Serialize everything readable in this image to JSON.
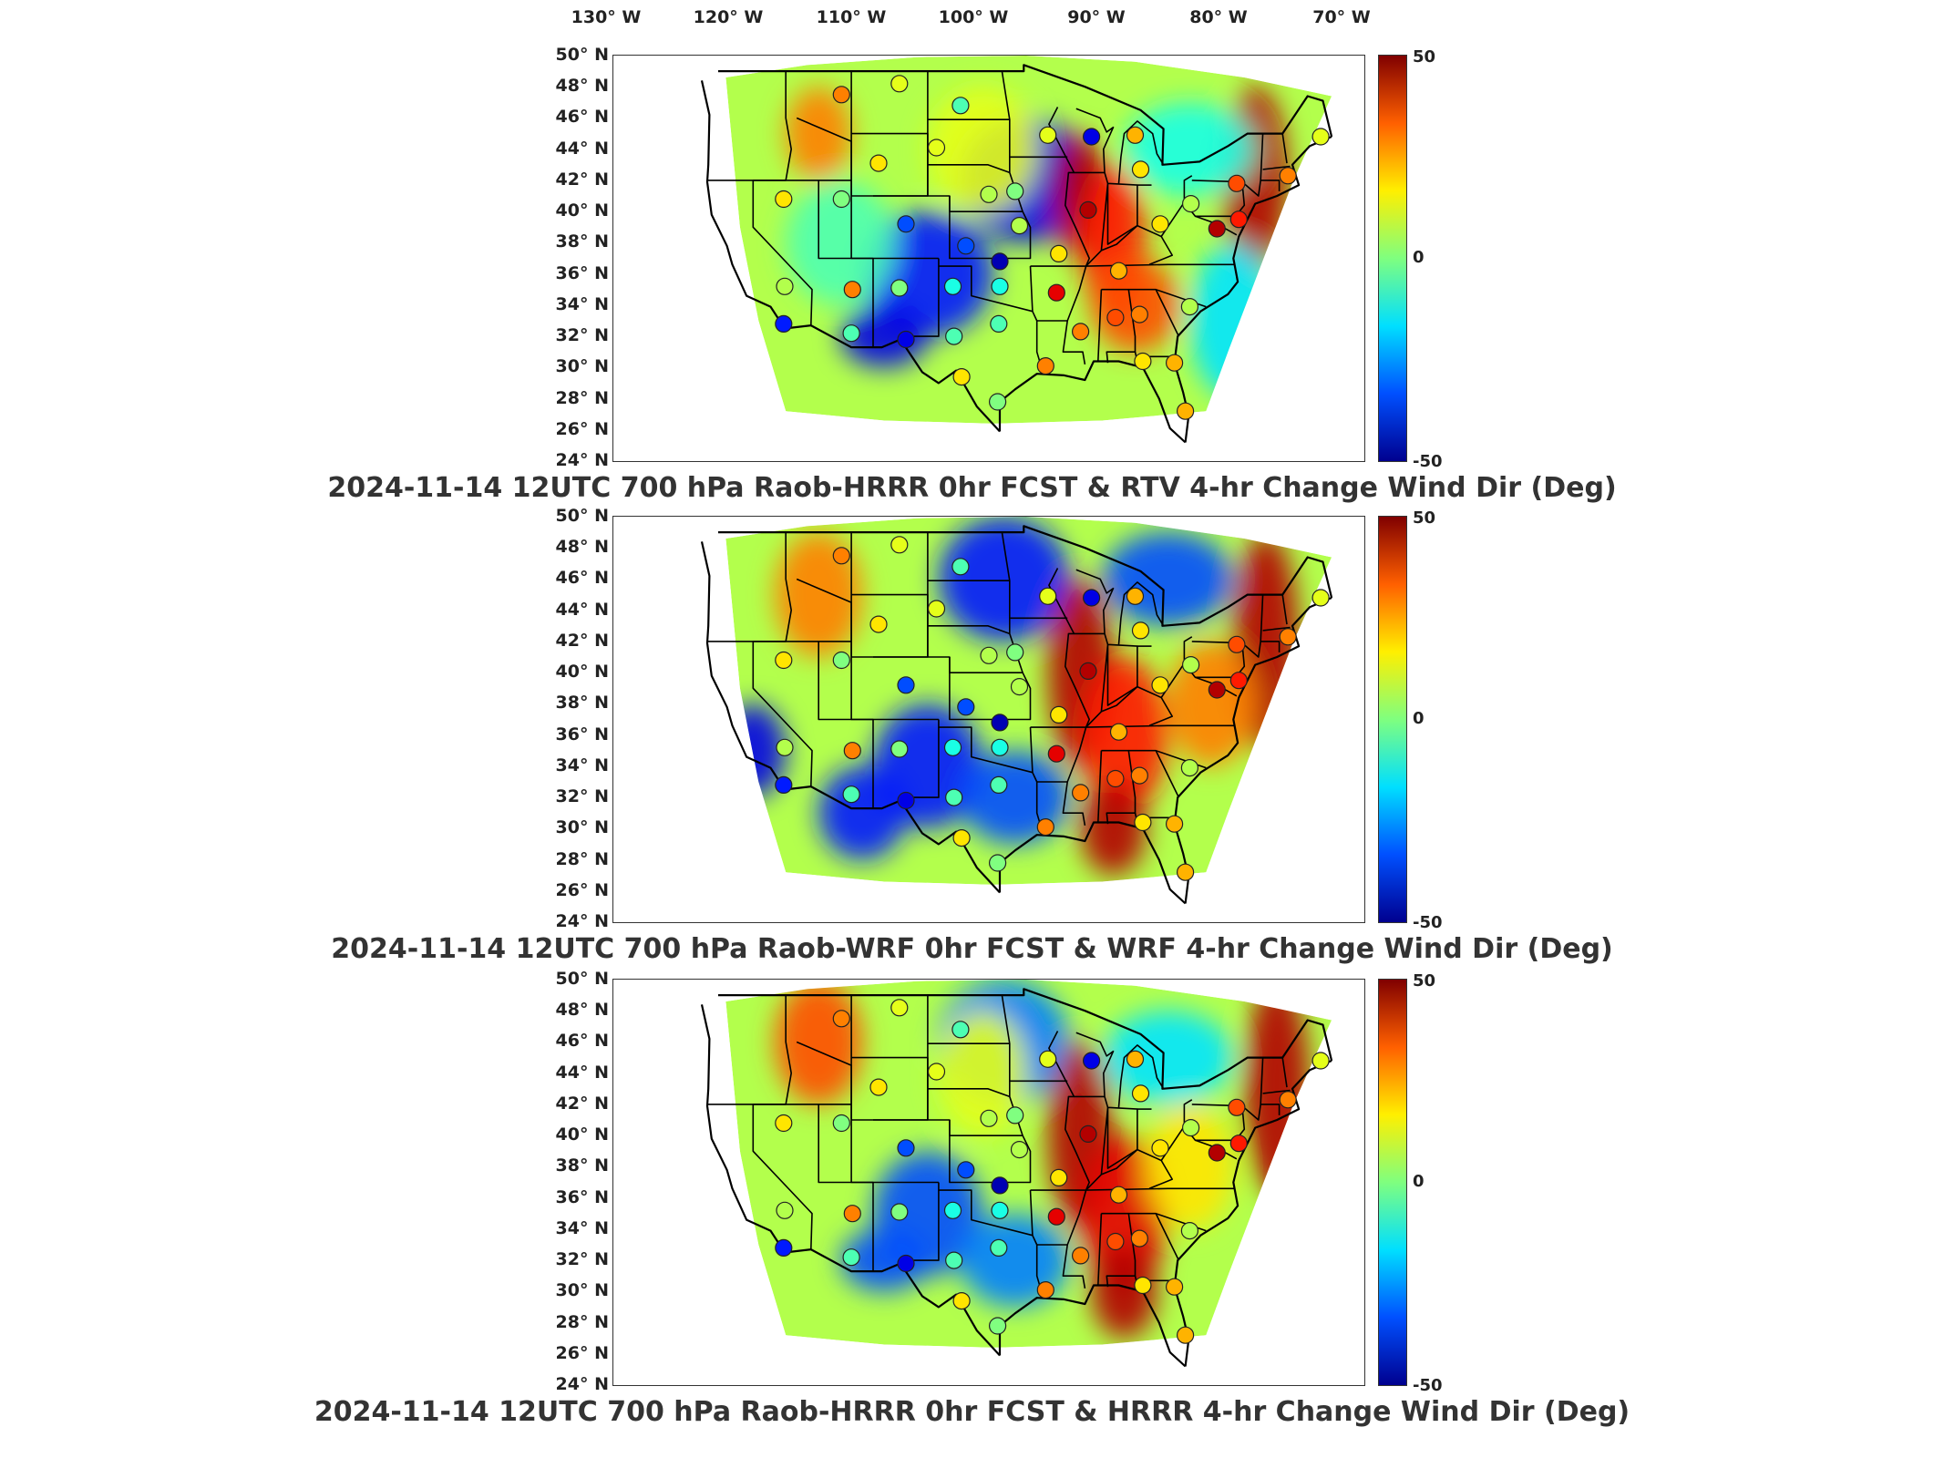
{
  "lon_labels": [
    "130° W",
    "120° W",
    "110° W",
    "100° W",
    "90° W",
    "80° W",
    "70° W"
  ],
  "lat_labels": [
    "50° N",
    "48° N",
    "46° N",
    "44° N",
    "42° N",
    "40° N",
    "38° N",
    "36° N",
    "34° N",
    "32° N",
    "30° N",
    "28° N",
    "26° N",
    "24° N"
  ],
  "colorbar": {
    "max_label": "50",
    "mid_label": "0",
    "min_label": "-50",
    "colors": [
      "#00008f",
      "#0050ff",
      "#00dfff",
      "#7fff7f",
      "#ffef00",
      "#ff6000",
      "#800000"
    ]
  },
  "panels": [
    {
      "title": "2024-11-14 12UTC 700 hPa Raob-HRRR 0hr FCST & RTV 4-hr Change Wind Dir (Deg)",
      "variant": "rtv"
    },
    {
      "title": "2024-11-14 12UTC 700 hPa Raob-WRF 0hr FCST & WRF 4-hr Change Wind Dir (Deg)",
      "variant": "wrf"
    },
    {
      "title": "2024-11-14 12UTC 700 hPa Raob-HRRR 0hr FCST & HRRR 4-hr Change Wind Dir (Deg)",
      "variant": "hrrr"
    }
  ],
  "chart_data": {
    "type": "heatmap",
    "colorbar_range": [
      -50,
      50
    ],
    "colorbar_ticks": [
      -50,
      0,
      50
    ],
    "lon_ticks": [
      -130,
      -120,
      -110,
      -100,
      -90,
      -80,
      -70
    ],
    "lat_ticks": [
      50,
      48,
      46,
      44,
      42,
      40,
      38,
      36,
      34,
      32,
      30,
      28,
      26,
      24
    ],
    "colormap": "jet",
    "raob_sites": [
      {
        "lon": -111.9,
        "lat": 47.5,
        "v": 25
      },
      {
        "lon": -106.6,
        "lat": 48.2,
        "v": 10
      },
      {
        "lon": -101.0,
        "lat": 46.8,
        "v": -5
      },
      {
        "lon": -108.5,
        "lat": 43.1,
        "v": 15
      },
      {
        "lon": -103.2,
        "lat": 44.1,
        "v": 10
      },
      {
        "lon": -98.4,
        "lat": 41.1,
        "v": 5
      },
      {
        "lon": -96.0,
        "lat": 41.3,
        "v": 0
      },
      {
        "lon": -93.0,
        "lat": 44.9,
        "v": 10
      },
      {
        "lon": -89.0,
        "lat": 44.8,
        "v": -40
      },
      {
        "lon": -85.0,
        "lat": 44.9,
        "v": 20
      },
      {
        "lon": -84.5,
        "lat": 42.7,
        "v": 15
      },
      {
        "lon": -117.2,
        "lat": 40.8,
        "v": 15
      },
      {
        "lon": -111.9,
        "lat": 40.8,
        "v": 0
      },
      {
        "lon": -106.0,
        "lat": 39.2,
        "v": -30
      },
      {
        "lon": -100.5,
        "lat": 37.8,
        "v": -30
      },
      {
        "lon": -95.6,
        "lat": 39.1,
        "v": 5
      },
      {
        "lon": -97.4,
        "lat": 36.8,
        "v": -45
      },
      {
        "lon": -92.0,
        "lat": 37.3,
        "v": 15
      },
      {
        "lon": -89.3,
        "lat": 40.1,
        "v": 45
      },
      {
        "lon": -86.5,
        "lat": 36.2,
        "v": 20
      },
      {
        "lon": -82.7,
        "lat": 39.2,
        "v": 15
      },
      {
        "lon": -79.9,
        "lat": 40.5,
        "v": 5
      },
      {
        "lon": -77.5,
        "lat": 38.9,
        "v": 45
      },
      {
        "lon": -75.5,
        "lat": 39.5,
        "v": 35
      },
      {
        "lon": -117.1,
        "lat": 35.2,
        "v": 5
      },
      {
        "lon": -110.9,
        "lat": 35.0,
        "v": 25
      },
      {
        "lon": -106.6,
        "lat": 35.1,
        "v": 0
      },
      {
        "lon": -101.7,
        "lat": 35.2,
        "v": -10
      },
      {
        "lon": -97.4,
        "lat": 35.2,
        "v": -10
      },
      {
        "lon": -92.2,
        "lat": 34.8,
        "v": 40
      },
      {
        "lon": -90.0,
        "lat": 32.3,
        "v": 25
      },
      {
        "lon": -86.8,
        "lat": 33.2,
        "v": 30
      },
      {
        "lon": -84.6,
        "lat": 33.4,
        "v": 25
      },
      {
        "lon": -80.0,
        "lat": 33.9,
        "v": 5
      },
      {
        "lon": -117.2,
        "lat": 32.8,
        "v": -35
      },
      {
        "lon": -111.0,
        "lat": 32.2,
        "v": -5
      },
      {
        "lon": -106.0,
        "lat": 31.8,
        "v": -40
      },
      {
        "lon": -101.6,
        "lat": 32.0,
        "v": -5
      },
      {
        "lon": -97.5,
        "lat": 32.8,
        "v": -5
      },
      {
        "lon": -93.2,
        "lat": 30.1,
        "v": 25
      },
      {
        "lon": -84.3,
        "lat": 30.4,
        "v": 15
      },
      {
        "lon": -81.4,
        "lat": 30.3,
        "v": 20
      },
      {
        "lon": -100.9,
        "lat": 29.4,
        "v": 15
      },
      {
        "lon": -97.6,
        "lat": 27.8,
        "v": 0
      },
      {
        "lon": -80.4,
        "lat": 27.2,
        "v": 20
      },
      {
        "lon": -75.7,
        "lat": 41.8,
        "v": 30
      },
      {
        "lon": -71.0,
        "lat": 42.3,
        "v": 25
      },
      {
        "lon": -68.0,
        "lat": 44.8,
        "v": 10
      }
    ]
  }
}
